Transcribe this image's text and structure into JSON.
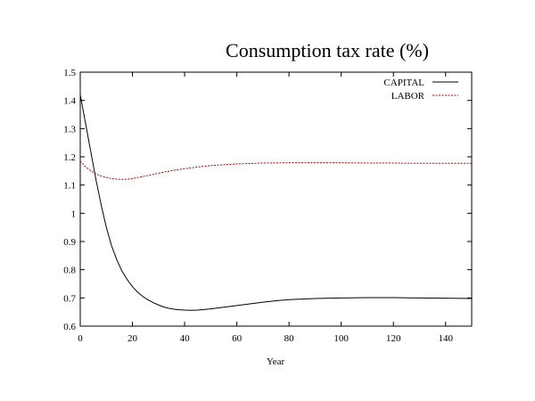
{
  "chart_data": {
    "type": "line",
    "title": "Consumption tax rate (%)",
    "xlabel": "Year",
    "ylabel": "",
    "xlim": [
      0,
      150
    ],
    "ylim": [
      0.6,
      1.5
    ],
    "x_ticks": [
      0,
      20,
      40,
      60,
      80,
      100,
      120,
      140
    ],
    "y_ticks": [
      0.6,
      0.7,
      0.8,
      0.9,
      1,
      1.1,
      1.2,
      1.3,
      1.4,
      1.5
    ],
    "grid": false,
    "legend_position": "top-right",
    "series": [
      {
        "name": "CAPITAL",
        "color": "#000000",
        "dash": "solid",
        "x": [
          0,
          2,
          4,
          6,
          8,
          10,
          12,
          14,
          16,
          18,
          20,
          22,
          24,
          26,
          28,
          30,
          32,
          34,
          36,
          38,
          40,
          42,
          45,
          50,
          55,
          60,
          65,
          70,
          75,
          80,
          90,
          100,
          110,
          120,
          130,
          140,
          150
        ],
        "y": [
          1.42,
          1.32,
          1.22,
          1.12,
          1.03,
          0.95,
          0.885,
          0.835,
          0.795,
          0.765,
          0.74,
          0.72,
          0.705,
          0.693,
          0.683,
          0.675,
          0.668,
          0.663,
          0.66,
          0.658,
          0.657,
          0.656,
          0.657,
          0.661,
          0.667,
          0.673,
          0.679,
          0.685,
          0.69,
          0.694,
          0.698,
          0.7,
          0.701,
          0.701,
          0.7,
          0.699,
          0.698
        ]
      },
      {
        "name": "LABOR",
        "color": "#c00000",
        "dash": "dashed",
        "x": [
          0,
          2,
          4,
          6,
          8,
          10,
          12,
          14,
          16,
          18,
          20,
          25,
          30,
          35,
          40,
          45,
          50,
          55,
          60,
          70,
          80,
          90,
          100,
          110,
          120,
          130,
          140,
          150
        ],
        "y": [
          1.185,
          1.165,
          1.15,
          1.14,
          1.132,
          1.127,
          1.123,
          1.121,
          1.12,
          1.121,
          1.123,
          1.132,
          1.142,
          1.151,
          1.158,
          1.164,
          1.169,
          1.172,
          1.175,
          1.178,
          1.179,
          1.179,
          1.179,
          1.178,
          1.178,
          1.177,
          1.177,
          1.177
        ]
      }
    ]
  }
}
